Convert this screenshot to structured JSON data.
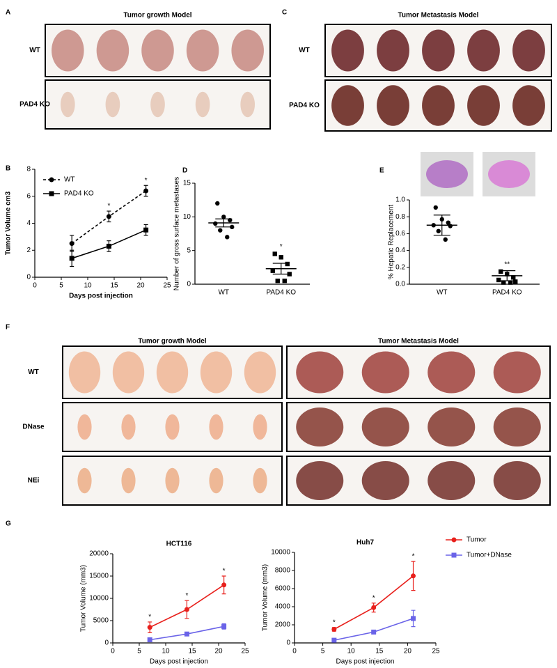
{
  "panel_labels": [
    "A",
    "B",
    "C",
    "D",
    "E",
    "F",
    "G"
  ],
  "photo_panels": [
    {
      "title": "Tumor growth Model",
      "rows": [
        "WT",
        "PAD4 KO"
      ]
    },
    {
      "title": "Tumor Metastasis Model",
      "rows": [
        "WT",
        "PAD4 KO"
      ]
    },
    {
      "title": "Tumor growth Model",
      "rows": [
        "WT",
        "DNase",
        "NEi"
      ]
    },
    {
      "title": "Tumor Metastasis Model"
    }
  ],
  "chart_data": [
    {
      "type": "line",
      "xlabel": "Days post injection",
      "ylabel": "Tumor Volume cm3",
      "x": [
        7,
        14,
        21
      ],
      "xlim": [
        0,
        25
      ],
      "xticks": [
        0,
        5,
        10,
        15,
        20,
        25
      ],
      "ylim": [
        0,
        8
      ],
      "yticks": [
        0,
        2,
        4,
        6,
        8
      ],
      "legend": "upper left",
      "series": [
        {
          "name": "WT",
          "color": "#000000",
          "marker": "circle",
          "dashed": true,
          "values": [
            2.5,
            4.5,
            6.4
          ],
          "errors": [
            0.6,
            0.4,
            0.4
          ]
        },
        {
          "name": "PAD4 KO",
          "color": "#000000",
          "marker": "square",
          "dashed": false,
          "values": [
            1.4,
            2.3,
            3.5
          ],
          "errors": [
            0.6,
            0.4,
            0.4
          ]
        }
      ],
      "annotations": [
        {
          "text": "*",
          "x": 14
        },
        {
          "text": "*",
          "x": 21
        }
      ]
    },
    {
      "type": "dot",
      "ylabel": "Number of gross surface metastases",
      "categories": [
        "WT",
        "PAD4 KO"
      ],
      "ylim": [
        0,
        15
      ],
      "yticks": [
        0,
        5,
        10,
        15
      ],
      "groups": [
        {
          "marker": "circle",
          "values": [
            12,
            10,
            9.5,
            9,
            8.5,
            8,
            7
          ],
          "mean": 9.1,
          "sem": 0.6
        },
        {
          "marker": "square",
          "values": [
            4.5,
            4,
            3,
            2,
            1.5,
            0.5,
            0.5
          ],
          "mean": 2.3,
          "sem": 0.8
        }
      ],
      "annotations": [
        {
          "text": "*",
          "category": 1
        }
      ]
    },
    {
      "type": "dot",
      "ylabel": "% Hepatic Replacement",
      "categories": [
        "WT",
        "PAD4 KO"
      ],
      "ylim": [
        0,
        1
      ],
      "yticks": [
        {
          "value": 0,
          "label": "0.0"
        },
        0.2,
        0.4,
        0.6,
        0.8,
        {
          "value": 1,
          "label": "1.0"
        }
      ],
      "groups": [
        {
          "marker": "circle",
          "values": [
            0.91,
            0.77,
            0.73,
            0.7,
            0.69,
            0.63,
            0.53
          ],
          "mean": 0.7,
          "sem": 0.12
        },
        {
          "marker": "square",
          "values": [
            0.15,
            0.12,
            0.08,
            0.05,
            0.03,
            0.02,
            0.02
          ],
          "mean": 0.1,
          "sem": 0.06
        }
      ],
      "annotations": [
        {
          "text": "**",
          "category": 1
        }
      ]
    },
    {
      "type": "line",
      "title": "HCT116",
      "xlabel": "Days post injection",
      "ylabel": "Tumor Volume (mm3)",
      "x": [
        7,
        14,
        21
      ],
      "xlim": [
        0,
        25
      ],
      "xticks": [
        0,
        5,
        10,
        15,
        20,
        25
      ],
      "ylim": [
        0,
        20000
      ],
      "yticks": [
        0,
        5000,
        10000,
        15000,
        20000
      ],
      "series": [
        {
          "color": "#e8201c",
          "marker": "circle",
          "dashed": false,
          "values": [
            3500,
            7500,
            13000
          ],
          "errors": [
            1200,
            2000,
            2000
          ]
        },
        {
          "color": "#6a63e8",
          "marker": "square",
          "dashed": false,
          "values": [
            700,
            2000,
            3700
          ],
          "errors": [
            200,
            200,
            600
          ]
        }
      ],
      "annotations": [
        {
          "text": "*",
          "x": 7
        },
        {
          "text": "*",
          "x": 14
        },
        {
          "text": "*",
          "x": 21
        }
      ]
    },
    {
      "type": "line",
      "title": "Huh7",
      "xlabel": "Days post injection",
      "ylabel": "Tumor Volume (mm3)",
      "x": [
        7,
        14,
        21
      ],
      "xlim": [
        0,
        25
      ],
      "xticks": [
        0,
        5,
        10,
        15,
        20,
        25
      ],
      "ylim": [
        0,
        10000
      ],
      "yticks": [
        0,
        2000,
        4000,
        6000,
        8000,
        10000
      ],
      "legend": "outside right",
      "series": [
        {
          "name": "Tumor",
          "color": "#e8201c",
          "marker": "circle",
          "dashed": false,
          "values": [
            1500,
            3900,
            7400
          ],
          "errors": [
            200,
            500,
            1600
          ]
        },
        {
          "name": "Tumor+DNase",
          "color": "#6a63e8",
          "marker": "square",
          "dashed": false,
          "values": [
            300,
            1200,
            2700
          ],
          "errors": [
            100,
            100,
            900
          ]
        }
      ],
      "annotations": [
        {
          "text": "*",
          "x": 7
        },
        {
          "text": "*",
          "x": 14
        },
        {
          "text": "*",
          "x": 21
        }
      ]
    }
  ]
}
